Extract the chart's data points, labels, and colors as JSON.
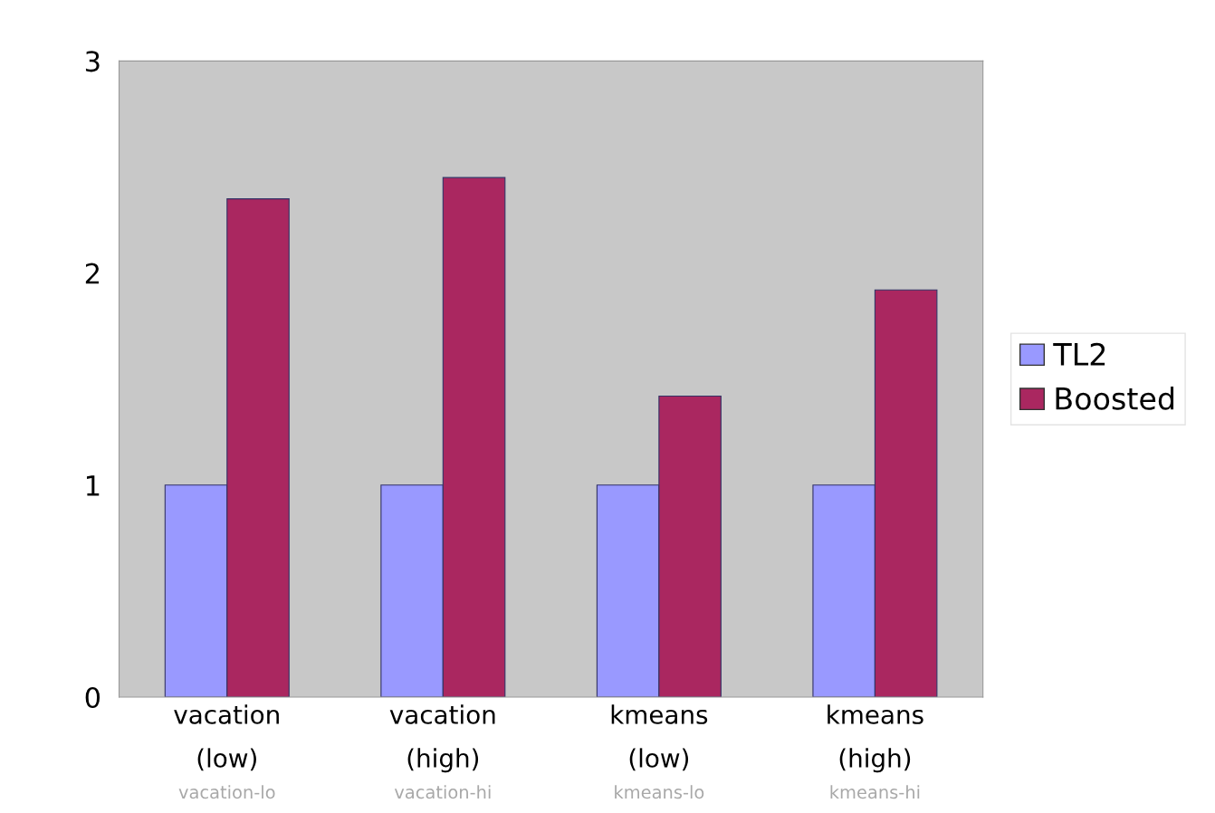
{
  "chart_data": {
    "type": "bar",
    "categories": [
      "vacation\n(low)",
      "vacation\n(high)",
      "kmeans\n(low)",
      "kmeans\n(high)"
    ],
    "series": [
      {
        "name": "TL2",
        "color": "#9999ff",
        "values": [
          1,
          1,
          1,
          1
        ]
      },
      {
        "name": "Boosted",
        "color": "#aa2760",
        "values": [
          2.35,
          2.45,
          1.42,
          1.92
        ]
      }
    ],
    "ylim": [
      0,
      3
    ],
    "yticks": [
      0,
      1,
      2,
      3
    ],
    "grid": false,
    "legend": "right",
    "annotations": [
      "vacation-lo",
      "vacation-hi",
      "kmeans-lo",
      "kmeans-hi"
    ]
  }
}
